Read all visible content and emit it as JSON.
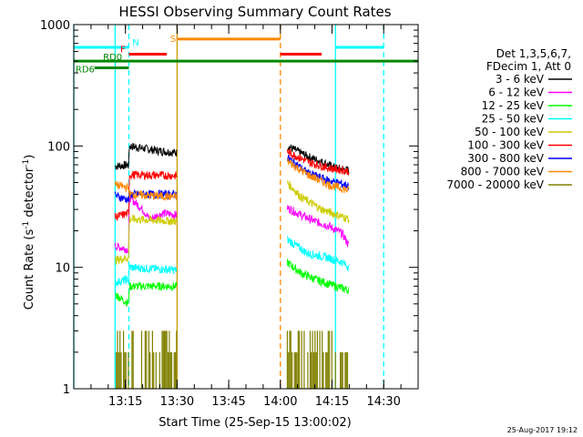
{
  "chart_data": {
    "type": "line",
    "title": "HESSI Observing Summary Count Rates",
    "xlabel": "Start Time (25-Sep-15 13:00:02)",
    "ylabel_main": "Count Rate (s",
    "ylabel_sup1": "-1",
    "ylabel_mid": " detector",
    "ylabel_sup2": "-1",
    "ylabel_end": ")",
    "yscale": "log",
    "ylim": [
      1,
      1000
    ],
    "xlim_minutes": [
      0,
      100
    ],
    "x_ticks": [
      {
        "label": "13:15",
        "t": 15
      },
      {
        "label": "13:30",
        "t": 30
      },
      {
        "label": "13:45",
        "t": 45
      },
      {
        "label": "14:00",
        "t": 60
      },
      {
        "label": "14:15",
        "t": 75
      },
      {
        "label": "14:30",
        "t": 90
      }
    ],
    "y_ticks": [
      {
        "label": "1",
        "v": 1
      },
      {
        "label": "10",
        "v": 10
      },
      {
        "label": "100",
        "v": 100
      },
      {
        "label": "1000",
        "v": 1000
      }
    ],
    "legend_header": [
      "Det 1,3,5,6,7,",
      "FDecim 1, Att 0"
    ],
    "series": [
      {
        "name": "3 - 6 keV",
        "color": "#000000",
        "seg1": [
          [
            12,
            68
          ],
          [
            16,
            70
          ],
          [
            16.1,
            100
          ],
          [
            24,
            92
          ],
          [
            30,
            88
          ]
        ],
        "seg2": [
          [
            62,
            100
          ],
          [
            68,
            82
          ],
          [
            72,
            74
          ],
          [
            76,
            66
          ],
          [
            80,
            63
          ]
        ]
      },
      {
        "name": "6 - 12 keV",
        "color": "#ff00ff",
        "seg1": [
          [
            12,
            15
          ],
          [
            16,
            14
          ],
          [
            16.1,
            38
          ],
          [
            20,
            30
          ],
          [
            22,
            25
          ],
          [
            26,
            28
          ],
          [
            30,
            27
          ]
        ],
        "seg2": [
          [
            62,
            31
          ],
          [
            66,
            27
          ],
          [
            70,
            24
          ],
          [
            74,
            22
          ],
          [
            78,
            19
          ],
          [
            80,
            15
          ]
        ]
      },
      {
        "name": "12 - 25 keV",
        "color": "#00ff00",
        "seg1": [
          [
            12,
            6
          ],
          [
            16,
            5
          ],
          [
            16.1,
            7
          ],
          [
            30,
            7
          ]
        ],
        "seg2": [
          [
            62,
            11
          ],
          [
            66,
            9
          ],
          [
            70,
            8
          ],
          [
            76,
            7
          ],
          [
            80,
            6.5
          ]
        ]
      },
      {
        "name": "25 - 50 keV",
        "color": "#00ffff",
        "seg1": [
          [
            12,
            7.5
          ],
          [
            16,
            8
          ],
          [
            16.1,
            10
          ],
          [
            30,
            9.5
          ]
        ],
        "seg2": [
          [
            62,
            17
          ],
          [
            68,
            13
          ],
          [
            74,
            12
          ],
          [
            78,
            11
          ],
          [
            80,
            10
          ]
        ]
      },
      {
        "name": "50 - 100 keV",
        "color": "#cccc00",
        "seg1": [
          [
            12,
            11.5
          ],
          [
            16,
            12
          ],
          [
            16.1,
            25
          ],
          [
            30,
            24
          ]
        ],
        "seg2": [
          [
            62,
            50
          ],
          [
            66,
            38
          ],
          [
            72,
            30
          ],
          [
            80,
            25
          ]
        ]
      },
      {
        "name": "100 - 300 keV",
        "color": "#ff0000",
        "seg1": [
          [
            12,
            26
          ],
          [
            16,
            28
          ],
          [
            16.1,
            58
          ],
          [
            30,
            57
          ]
        ],
        "seg2": [
          [
            62,
            90
          ],
          [
            68,
            74
          ],
          [
            74,
            66
          ],
          [
            80,
            62
          ]
        ]
      },
      {
        "name": "300 - 800 keV",
        "color": "#0000ff",
        "seg1": [
          [
            12,
            39
          ],
          [
            16,
            36
          ],
          [
            16.1,
            40
          ],
          [
            30,
            40
          ]
        ],
        "seg2": [
          [
            62,
            80
          ],
          [
            68,
            60
          ],
          [
            74,
            52
          ],
          [
            80,
            47
          ]
        ]
      },
      {
        "name": "800 - 7000 keV",
        "color": "#ff8800",
        "seg1": [
          [
            12,
            48
          ],
          [
            16,
            45
          ],
          [
            16.1,
            40
          ],
          [
            30,
            38
          ]
        ],
        "seg2": [
          [
            62,
            75
          ],
          [
            68,
            58
          ],
          [
            74,
            48
          ],
          [
            80,
            43
          ]
        ]
      },
      {
        "name": "7000 - 20000 keV",
        "color": "#808000",
        "seg1": [
          [
            12,
            2.5
          ],
          [
            16,
            2
          ],
          [
            30,
            1.8
          ]
        ],
        "seg2": [
          [
            62,
            3
          ],
          [
            66,
            2
          ],
          [
            70,
            1.8
          ],
          [
            80,
            1.6
          ]
        ]
      }
    ],
    "flag_bars": [
      {
        "label": "N",
        "color": "#00ffff",
        "y": 650,
        "segments": [
          [
            0,
            16
          ],
          [
            76,
            90
          ]
        ]
      },
      {
        "label": "F",
        "color": "#ff0000",
        "y": 570,
        "segments": [
          [
            16,
            27
          ],
          [
            60,
            72
          ]
        ]
      },
      {
        "label": "S",
        "color": "#ff8800",
        "y": 760,
        "segments": [
          [
            30,
            60
          ]
        ]
      },
      {
        "label": "RD0",
        "color": "#008800",
        "y": 500,
        "segments": [
          [
            0,
            100
          ]
        ]
      },
      {
        "label": "RD6",
        "color": "#008800",
        "y": 440,
        "segments": [
          [
            6,
            16
          ]
        ]
      }
    ],
    "vertical_lines": [
      {
        "t": 0,
        "color": "#00ffff",
        "dashed": false
      },
      {
        "t": 12,
        "color": "#00ffff",
        "dashed": false
      },
      {
        "t": 16,
        "color": "#00ffff",
        "dashed": true
      },
      {
        "t": 30,
        "color": "#cc9900",
        "dashed": false
      },
      {
        "t": 60,
        "color": "#ff8800",
        "dashed": true
      },
      {
        "t": 76,
        "color": "#00ffff",
        "dashed": false
      },
      {
        "t": 90,
        "color": "#00ffff",
        "dashed": true
      }
    ],
    "footer_date": "25-Aug-2017 19:12"
  }
}
